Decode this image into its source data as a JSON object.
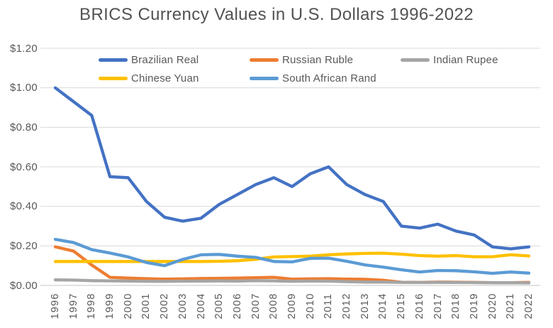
{
  "chart_data": {
    "type": "line",
    "title": "BRICS Currency Values in U.S. Dollars 1996-2022",
    "x": [
      1996,
      1997,
      1998,
      1999,
      2000,
      2001,
      2002,
      2003,
      2004,
      2005,
      2006,
      2007,
      2008,
      2009,
      2010,
      2011,
      2012,
      2013,
      2014,
      2015,
      2016,
      2017,
      2018,
      2019,
      2020,
      2021,
      2022
    ],
    "ylim": [
      0,
      1.2
    ],
    "y_ticks": [
      1.2,
      1.0,
      0.8,
      0.6,
      0.4,
      0.2,
      0.0
    ],
    "y_tick_labels": [
      "$1.20",
      "$1.00",
      "$0.80",
      "$0.60",
      "$0.40",
      "$0.20",
      "$0.00"
    ],
    "grid": true,
    "legend_position": "top-inside-two-rows",
    "series": [
      {
        "name": "Brazilian Real",
        "color": "#4472C4",
        "values": [
          1.0,
          0.93,
          0.86,
          0.55,
          0.545,
          0.425,
          0.345,
          0.325,
          0.34,
          0.41,
          0.46,
          0.51,
          0.545,
          0.5,
          0.565,
          0.6,
          0.51,
          0.46,
          0.425,
          0.3,
          0.29,
          0.31,
          0.275,
          0.255,
          0.195,
          0.185,
          0.195
        ]
      },
      {
        "name": "Russian Ruble",
        "color": "#ED7D31",
        "values": [
          0.195,
          0.174,
          0.103,
          0.041,
          0.037,
          0.034,
          0.032,
          0.033,
          0.035,
          0.036,
          0.037,
          0.039,
          0.041,
          0.032,
          0.033,
          0.034,
          0.032,
          0.031,
          0.026,
          0.016,
          0.015,
          0.017,
          0.016,
          0.015,
          0.014,
          0.0135,
          0.015
        ]
      },
      {
        "name": "Indian Rupee",
        "color": "#A5A5A5",
        "values": [
          0.028,
          0.027,
          0.024,
          0.023,
          0.022,
          0.021,
          0.0205,
          0.0215,
          0.022,
          0.0225,
          0.022,
          0.024,
          0.023,
          0.021,
          0.022,
          0.0215,
          0.019,
          0.017,
          0.0165,
          0.0156,
          0.0149,
          0.0154,
          0.0146,
          0.0142,
          0.0135,
          0.0135,
          0.0127
        ]
      },
      {
        "name": "Chinese Yuan",
        "color": "#FFC000",
        "values": [
          0.121,
          0.121,
          0.121,
          0.121,
          0.121,
          0.121,
          0.121,
          0.121,
          0.121,
          0.122,
          0.125,
          0.132,
          0.144,
          0.146,
          0.148,
          0.155,
          0.159,
          0.162,
          0.163,
          0.158,
          0.151,
          0.148,
          0.151,
          0.145,
          0.145,
          0.155,
          0.149
        ]
      },
      {
        "name": "South African Rand",
        "color": "#5B9BD5",
        "values": [
          0.233,
          0.217,
          0.181,
          0.164,
          0.144,
          0.116,
          0.1,
          0.132,
          0.155,
          0.157,
          0.148,
          0.142,
          0.121,
          0.119,
          0.137,
          0.138,
          0.122,
          0.104,
          0.0925,
          0.079,
          0.068,
          0.0755,
          0.0745,
          0.0685,
          0.061,
          0.068,
          0.062
        ]
      }
    ]
  },
  "style": {
    "gridline_color": "#D9D9D9",
    "axis_line_color": "#C6C6C6",
    "axis_text_color": "#595959",
    "title_text_color": "#525252",
    "background": "#FFFFFF"
  }
}
